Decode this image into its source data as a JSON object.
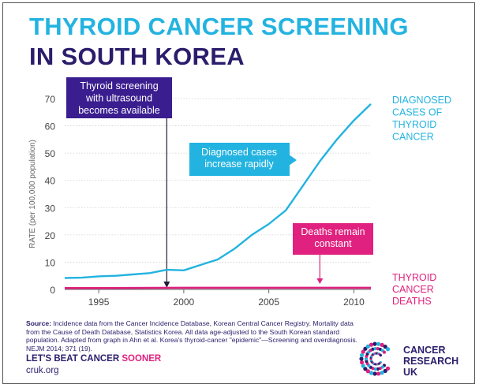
{
  "header": {
    "title_line1": "THYROID CANCER SCREENING",
    "title_line2": "IN SOUTH KOREA",
    "title1_color": "#23b3e0",
    "title2_color": "#2b1d6b"
  },
  "chart_data": {
    "type": "line",
    "title": "THYROID CANCER SCREENING IN SOUTH KOREA",
    "xlabel": "",
    "ylabel": "RATE (per 100,000 population)",
    "xlim": [
      1993,
      2011
    ],
    "ylim": [
      0,
      70
    ],
    "xticks": [
      1995,
      2000,
      2005,
      2010
    ],
    "yticks": [
      0,
      10,
      20,
      30,
      40,
      50,
      60,
      70
    ],
    "grid": true,
    "series": [
      {
        "name": "DIAGNOSED CASES OF THYROID CANCER",
        "label_lines": [
          "DIAGNOSED",
          "CASES OF",
          "THYROID",
          "CANCER"
        ],
        "color": "#23b3e0",
        "x": [
          1993,
          1994,
          1995,
          1996,
          1997,
          1998,
          1999,
          2000,
          2001,
          2002,
          2003,
          2004,
          2005,
          2006,
          2007,
          2008,
          2009,
          2010,
          2011
        ],
        "values": [
          4.2,
          4.3,
          4.8,
          5.0,
          5.5,
          6.0,
          7.2,
          7.0,
          9.0,
          11.0,
          15.0,
          20.0,
          24.0,
          29.0,
          38.0,
          47.0,
          55.0,
          62.0,
          68.0
        ]
      },
      {
        "name": "THYROID CANCER DEATHS",
        "label_lines": [
          "THYROID",
          "CANCER",
          "DEATHS"
        ],
        "color": "#e0217f",
        "x": [
          1993,
          1995,
          2000,
          2005,
          2010,
          2011
        ],
        "values": [
          0.5,
          0.5,
          0.6,
          0.6,
          0.6,
          0.6
        ]
      }
    ],
    "annotations": [
      {
        "lines": [
          "Thyroid screening",
          "with ultrasound",
          "becomes available"
        ],
        "x": 1999,
        "color": "#3a1d8f"
      },
      {
        "lines": [
          "Diagnosed cases",
          "increase rapidly"
        ],
        "x": 2003.3,
        "y": 44,
        "color": "#23b3e0"
      },
      {
        "lines": [
          "Deaths remain",
          "constant"
        ],
        "x": 2008,
        "y": 1.5,
        "color": "#e0217f"
      }
    ]
  },
  "footer": {
    "source_label": "Source:",
    "source_text": "Incidence data from the Cancer Incidence Database, Korean Central Cancer Registry. Mortality data from the Cause of Death Database, Statistics Korea. All data age-adjusted to the South Korean standard population. Adapted from graph in Ahn et al. Korea's thyroid-cancer \"epidemic\"—Screening and overdiagnosis. NEJM 2014; 371 (19).",
    "tagline_part1": "LET'S BEAT CANCER ",
    "tagline_part2": "SOONER",
    "tagline_accent": "#e0217f",
    "website": "cruk.org",
    "logo_lines": [
      "CANCER",
      "RESEARCH",
      "UK"
    ],
    "logo_colors": [
      "#e0217f",
      "#2b1d6b",
      "#23b3e0"
    ]
  }
}
